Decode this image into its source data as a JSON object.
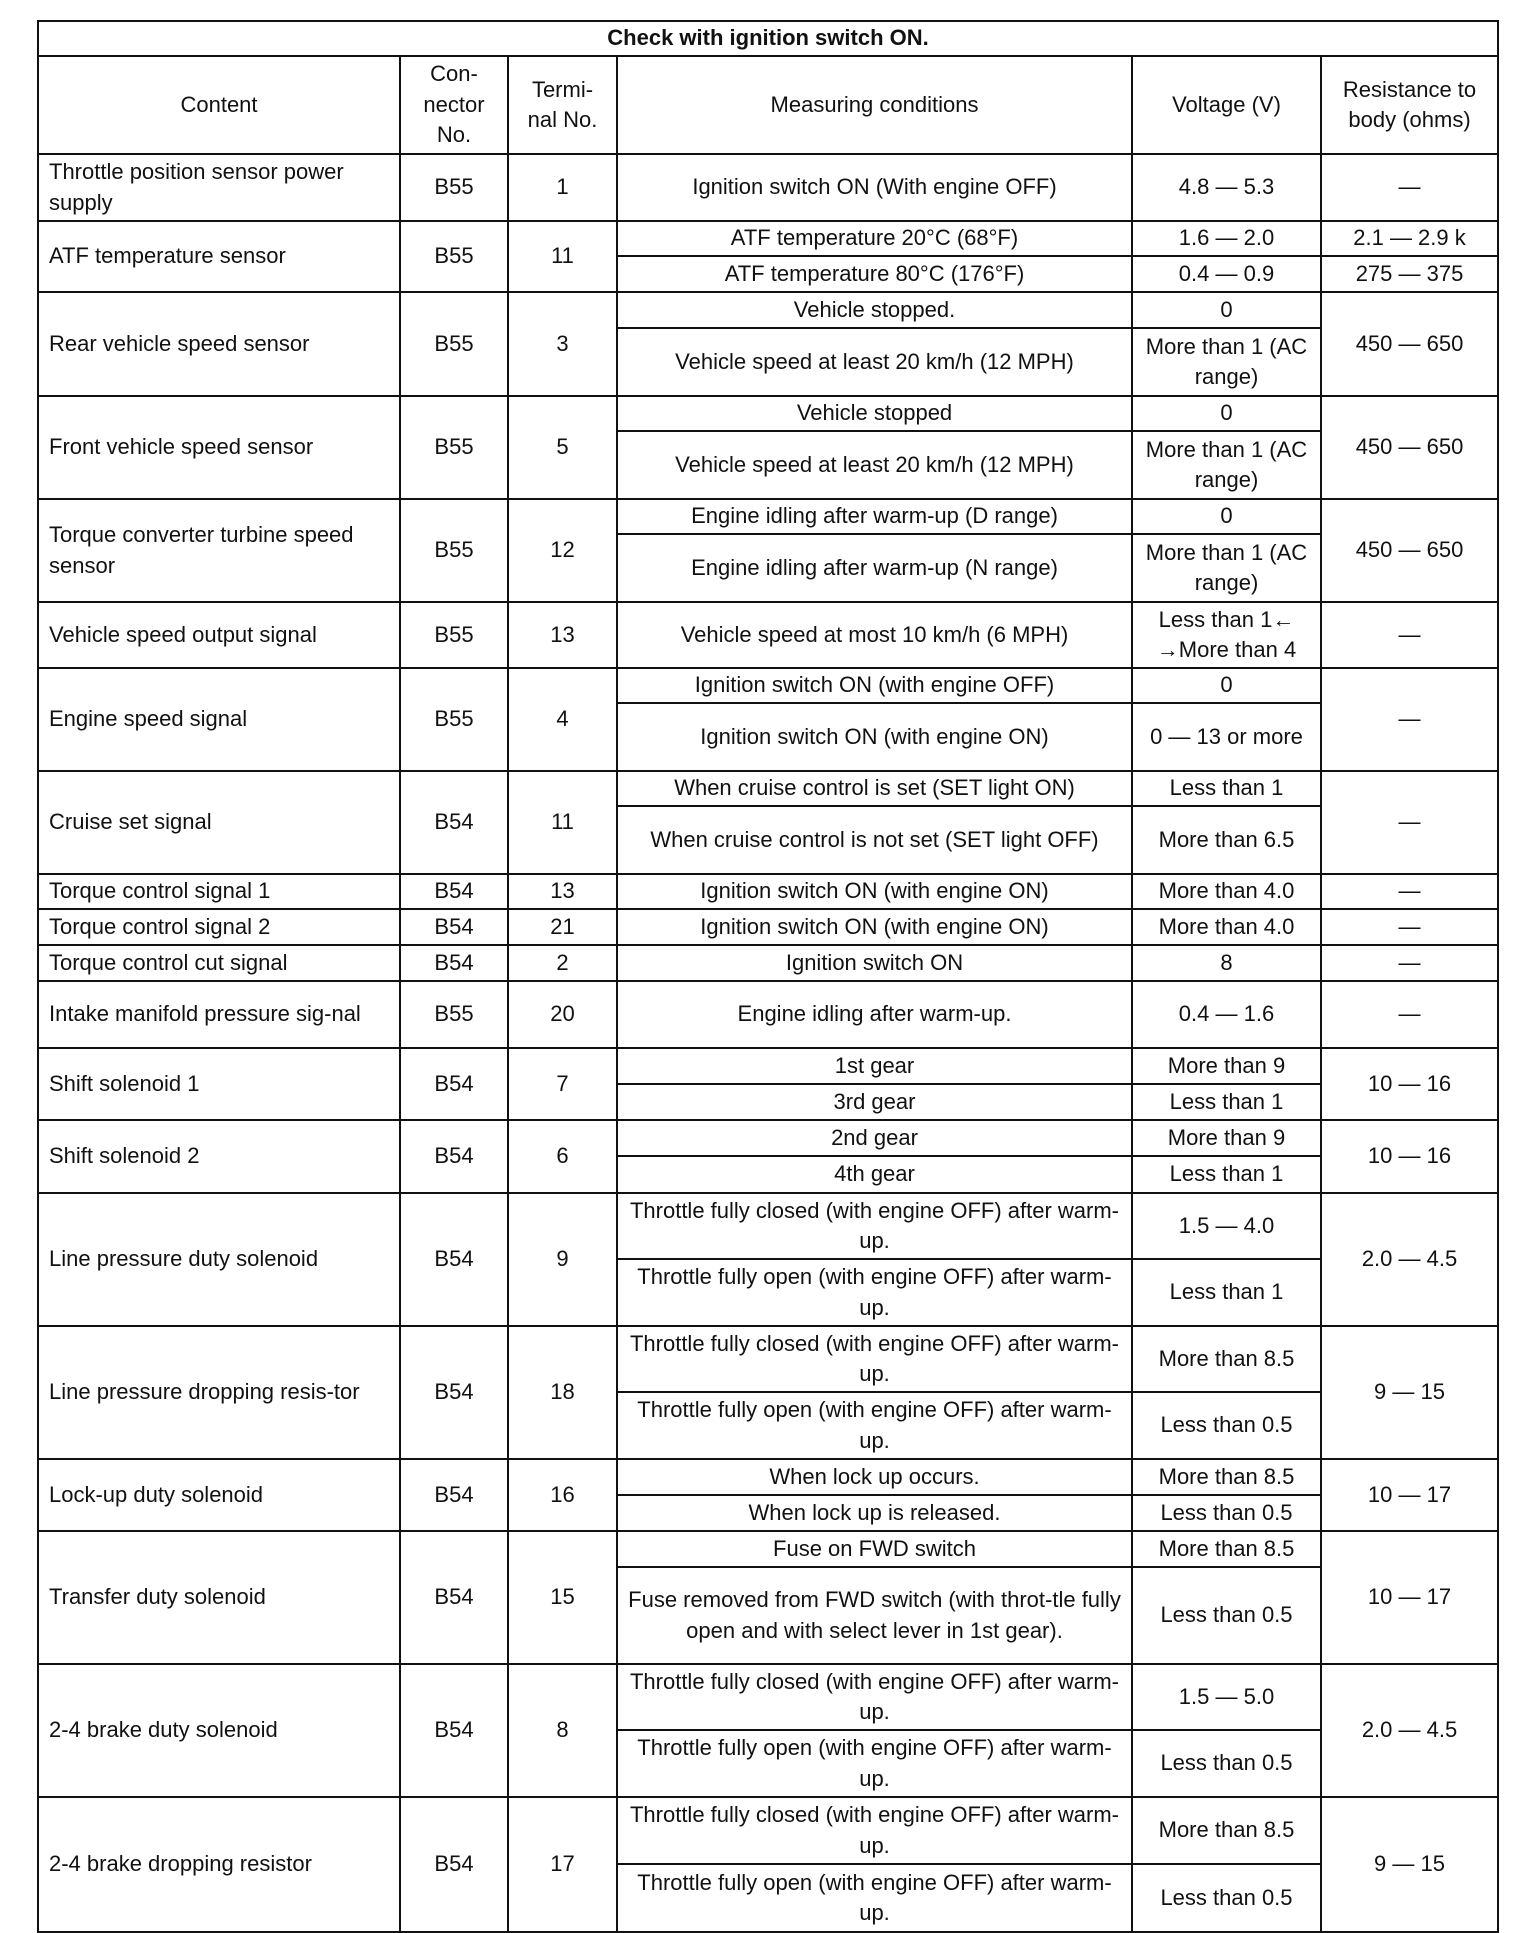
{
  "title": "Check with ignition switch ON.",
  "headers": {
    "content": "Content",
    "connector": "Con-\nnector\nNo.",
    "terminal": "Termi-\nnal No.",
    "conditions": "Measuring conditions",
    "voltage": "Voltage (V)",
    "resistance": "Resistance to\nbody (ohms)"
  },
  "rows": [
    {
      "content": "Throttle position sensor power supply",
      "connector": "B55",
      "terminal": "1",
      "resistance": "—",
      "conditions": [
        {
          "condition": "Ignition switch ON (With engine OFF)",
          "voltage": "4.8 — 5.3"
        }
      ]
    },
    {
      "content": "ATF temperature sensor",
      "connector": "B55",
      "terminal": "11",
      "conditions": [
        {
          "condition": "ATF temperature 20°C (68°F)",
          "voltage": "1.6 — 2.0",
          "resistance": "2.1 — 2.9 k"
        },
        {
          "condition": "ATF temperature 80°C (176°F)",
          "voltage": "0.4 — 0.9",
          "resistance": "275 — 375"
        }
      ]
    },
    {
      "content": "Rear vehicle speed sensor",
      "connector": "B55",
      "terminal": "3",
      "resistance": "450 — 650",
      "conditions": [
        {
          "condition": "Vehicle stopped.",
          "voltage": "0"
        },
        {
          "condition": "Vehicle speed at least 20 km/h (12 MPH)",
          "voltage": "More than 1 (AC range)"
        }
      ]
    },
    {
      "content": "Front vehicle speed sensor",
      "connector": "B55",
      "terminal": "5",
      "resistance": "450 — 650",
      "conditions": [
        {
          "condition": "Vehicle stopped",
          "voltage": "0"
        },
        {
          "condition": "Vehicle speed at least 20 km/h (12 MPH)",
          "voltage": "More than 1 (AC range)"
        }
      ]
    },
    {
      "content": "Torque converter turbine speed sensor",
      "connector": "B55",
      "terminal": "12",
      "resistance": "450 — 650",
      "conditions": [
        {
          "condition": "Engine idling after warm-up (D range)",
          "voltage": "0"
        },
        {
          "condition": "Engine idling after warm-up (N range)",
          "voltage": "More than 1 (AC range)"
        }
      ]
    },
    {
      "content": "Vehicle speed output signal",
      "connector": "B55",
      "terminal": "13",
      "resistance": "—",
      "conditions": [
        {
          "condition": "Vehicle speed at most 10 km/h (6 MPH)",
          "voltage": "Less than 1← →More than 4"
        }
      ]
    },
    {
      "content": "Engine speed signal",
      "connector": "B55",
      "terminal": "4",
      "resistance": "—",
      "conditions": [
        {
          "condition": "Ignition switch ON (with engine OFF)",
          "voltage": "0"
        },
        {
          "condition": "Ignition switch ON (with engine ON)",
          "voltage": "0 — 13 or more"
        }
      ]
    },
    {
      "content": "Cruise set signal",
      "connector": "B54",
      "terminal": "11",
      "resistance": "—",
      "conditions": [
        {
          "condition": "When cruise control is set (SET light ON)",
          "voltage": "Less than 1"
        },
        {
          "condition": "When cruise control is not set (SET light OFF)",
          "voltage": "More than 6.5"
        }
      ]
    },
    {
      "content": "Torque control signal 1",
      "connector": "B54",
      "terminal": "13",
      "resistance": "—",
      "conditions": [
        {
          "condition": "Ignition switch ON (with engine ON)",
          "voltage": "More than 4.0"
        }
      ]
    },
    {
      "content": "Torque control signal 2",
      "connector": "B54",
      "terminal": "21",
      "resistance": "—",
      "conditions": [
        {
          "condition": "Ignition switch ON (with engine ON)",
          "voltage": "More than 4.0"
        }
      ]
    },
    {
      "content": "Torque control cut signal",
      "connector": "B54",
      "terminal": "2",
      "resistance": "—",
      "conditions": [
        {
          "condition": "Ignition switch ON",
          "voltage": "8"
        }
      ]
    },
    {
      "content": "Intake manifold pressure sig-nal",
      "connector": "B55",
      "terminal": "20",
      "resistance": "—",
      "conditions": [
        {
          "condition": "Engine idling after warm-up.",
          "voltage": "0.4 — 1.6"
        }
      ]
    },
    {
      "content": "Shift solenoid 1",
      "connector": "B54",
      "terminal": "7",
      "resistance": "10 — 16",
      "conditions": [
        {
          "condition": "1st gear",
          "voltage": "More than 9"
        },
        {
          "condition": "3rd gear",
          "voltage": "Less than 1"
        }
      ]
    },
    {
      "content": "Shift solenoid 2",
      "connector": "B54",
      "terminal": "6",
      "resistance": "10 — 16",
      "conditions": [
        {
          "condition": "2nd gear",
          "voltage": "More than 9"
        },
        {
          "condition": "4th gear",
          "voltage": "Less than 1"
        }
      ]
    },
    {
      "content": "Line pressure duty solenoid",
      "connector": "B54",
      "terminal": "9",
      "resistance": "2.0 — 4.5",
      "conditions": [
        {
          "condition": "Throttle fully closed (with engine OFF) after warm-up.",
          "voltage": "1.5 — 4.0"
        },
        {
          "condition": "Throttle fully open (with engine OFF) after warm-up.",
          "voltage": "Less than 1"
        }
      ]
    },
    {
      "content": "Line pressure dropping resis-tor",
      "connector": "B54",
      "terminal": "18",
      "resistance": "9 — 15",
      "conditions": [
        {
          "condition": "Throttle fully closed (with engine OFF) after warm-up.",
          "voltage": "More than 8.5"
        },
        {
          "condition": "Throttle fully open (with engine OFF) after warm-up.",
          "voltage": "Less than 0.5"
        }
      ]
    },
    {
      "content": "Lock-up duty solenoid",
      "connector": "B54",
      "terminal": "16",
      "resistance": "10 — 17",
      "conditions": [
        {
          "condition": "When lock up occurs.",
          "voltage": "More than 8.5"
        },
        {
          "condition": "When lock up is released.",
          "voltage": "Less than 0.5"
        }
      ]
    },
    {
      "content": "Transfer duty solenoid",
      "connector": "B54",
      "terminal": "15",
      "resistance": "10 — 17",
      "conditions": [
        {
          "condition": "Fuse on FWD switch",
          "voltage": "More than 8.5"
        },
        {
          "condition": "Fuse removed from FWD switch (with throt-tle fully open and with select lever in 1st gear).",
          "voltage": "Less than 0.5"
        }
      ]
    },
    {
      "content": "2-4 brake duty solenoid",
      "connector": "B54",
      "terminal": "8",
      "resistance": "2.0 — 4.5",
      "conditions": [
        {
          "condition": "Throttle fully closed (with engine OFF) after warm-up.",
          "voltage": "1.5 — 5.0"
        },
        {
          "condition": "Throttle fully open (with engine OFF) after warm-up.",
          "voltage": "Less than 0.5"
        }
      ]
    },
    {
      "content": "2-4 brake dropping resistor",
      "connector": "B54",
      "terminal": "17",
      "resistance": "9 — 15",
      "conditions": [
        {
          "condition": "Throttle fully closed (with engine OFF) after warm-up.",
          "voltage": "More than 8.5"
        },
        {
          "condition": "Throttle fully open (with engine OFF) after warm-up.",
          "voltage": "Less than 0.5"
        }
      ]
    }
  ]
}
